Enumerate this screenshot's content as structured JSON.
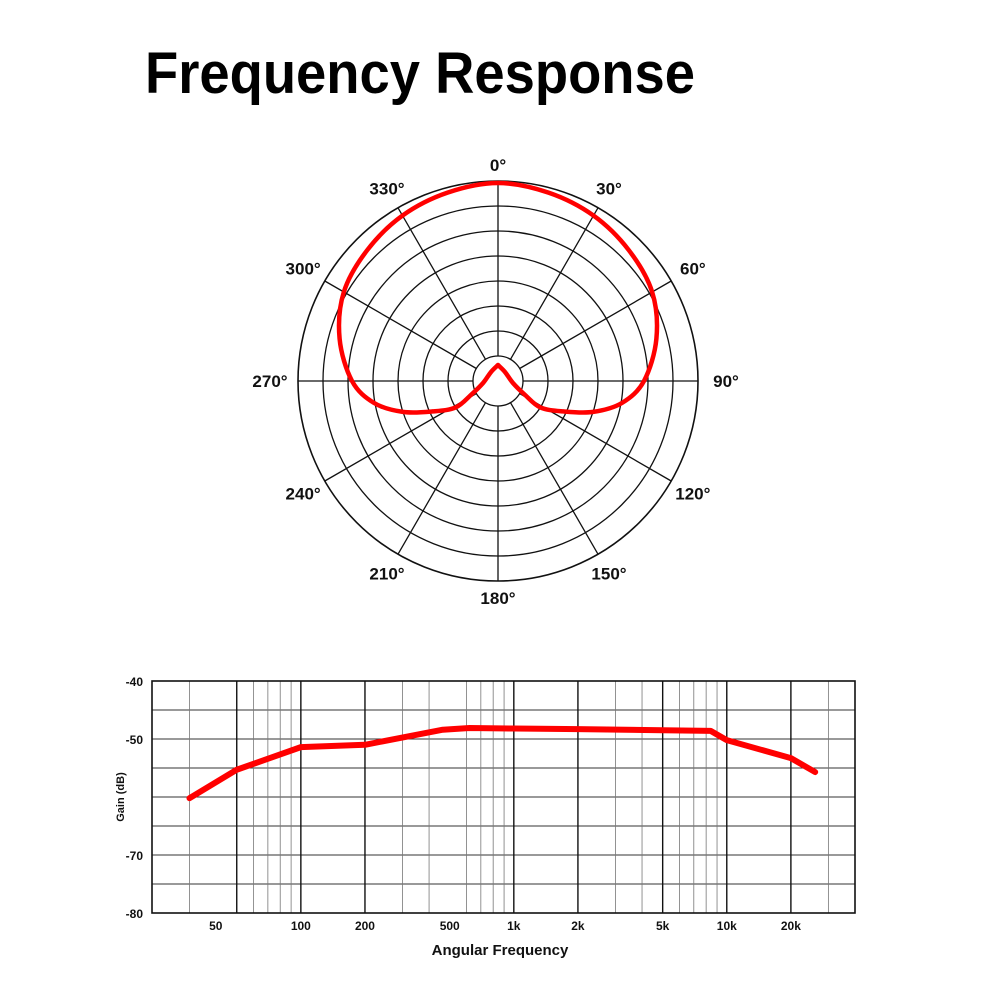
{
  "title": "Frequency Response",
  "chart_data": [
    {
      "type": "polar",
      "title": "",
      "angle_labels": [
        "0°",
        "30°",
        "60°",
        "90°",
        "120°",
        "150°",
        "180°",
        "210°",
        "240°",
        "270°",
        "300°",
        "330°"
      ],
      "angles": [
        0,
        30,
        60,
        90,
        120,
        150,
        180,
        210,
        240,
        270,
        300,
        330
      ],
      "rings": 8,
      "grid": true,
      "series_color": "#ff0000",
      "pattern_right_half": [
        [
          0,
          0.99
        ],
        [
          15,
          0.975
        ],
        [
          30,
          0.955
        ],
        [
          45,
          0.925
        ],
        [
          60,
          0.89
        ],
        [
          75,
          0.82
        ],
        [
          90,
          0.73
        ],
        [
          100,
          0.63
        ],
        [
          108,
          0.5
        ],
        [
          115,
          0.36
        ],
        [
          122,
          0.25
        ],
        [
          117,
          0.15
        ],
        [
          98,
          0.076
        ],
        [
          38,
          0.057
        ],
        [
          0,
          0.08
        ]
      ],
      "symmetric": true
    },
    {
      "type": "line",
      "title": "",
      "xlabel": "Angular Frequency",
      "ylabel": "Gain (dB)",
      "xscale": "log",
      "xlim": [
        20,
        40000
      ],
      "ylim": [
        -80,
        -40
      ],
      "grid": true,
      "x_tick_labels": [
        {
          "value": 50,
          "label": "50"
        },
        {
          "value": 100,
          "label": "100"
        },
        {
          "value": 200,
          "label": "200"
        },
        {
          "value": 500,
          "label": "500"
        },
        {
          "value": 1000,
          "label": "1k"
        },
        {
          "value": 2000,
          "label": "2k"
        },
        {
          "value": 5000,
          "label": "5k"
        },
        {
          "value": 10000,
          "label": "10k"
        },
        {
          "value": 20000,
          "label": "20k"
        }
      ],
      "y_tick_labels": [
        {
          "value": -40,
          "label": "-40"
        },
        {
          "value": -50,
          "label": "-50"
        },
        {
          "value": -70,
          "label": "-70"
        },
        {
          "value": -80,
          "label": "-80"
        }
      ],
      "major_x_gridlines": [
        50,
        100,
        200,
        1000,
        2000,
        5000,
        10000,
        20000
      ],
      "minor_x_gridlines": [
        30,
        60,
        70,
        80,
        90,
        300,
        400,
        600,
        700,
        800,
        900,
        3000,
        4000,
        6000,
        7000,
        8000,
        9000,
        30000
      ],
      "y_gridlines": [
        -45,
        -50,
        -55,
        -60,
        -65,
        -70,
        -75
      ],
      "series": [
        {
          "color": "#ff0000",
          "x": [
            30,
            50,
            100,
            200,
            464,
            620,
            1000,
            2000,
            5000,
            8400,
            10000,
            20000,
            26000
          ],
          "y": [
            -60.2,
            -55.3,
            -51.4,
            -51.0,
            -48.4,
            -48.1,
            -48.2,
            -48.3,
            -48.5,
            -48.6,
            -50.2,
            -53.3,
            -55.7
          ]
        }
      ]
    }
  ]
}
